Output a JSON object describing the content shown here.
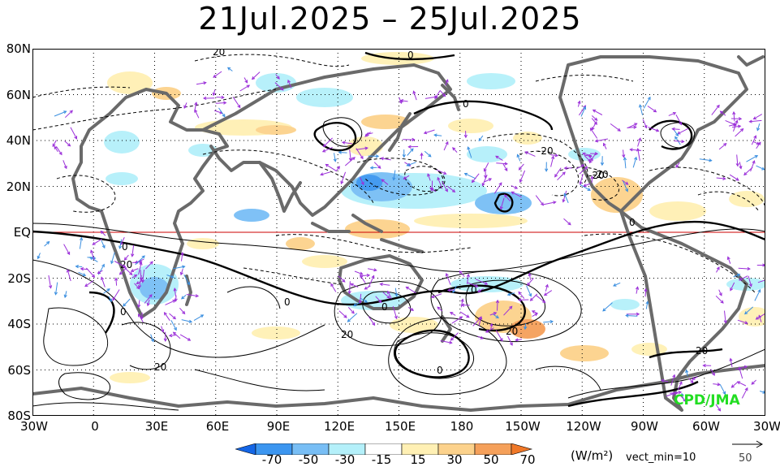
{
  "title": "21Jul.2025 – 25Jul.2025",
  "y_axis_labels": [
    "80N",
    "60N",
    "40N",
    "20N",
    "EQ",
    "20S",
    "40S",
    "60S",
    "80S"
  ],
  "x_axis_labels": [
    "30W",
    "0",
    "30E",
    "60E",
    "90E",
    "120E",
    "150E",
    "180",
    "150W",
    "120W",
    "90W",
    "60W",
    "30W"
  ],
  "contour_labels": [
    "20",
    "0",
    "0",
    "0",
    "-20",
    "-20",
    "0",
    "0",
    "20",
    "0",
    "20",
    "0",
    "20",
    "20",
    "0",
    "20",
    "0",
    "-20"
  ],
  "credit": "CPD/JMA",
  "colorbar": {
    "ticks": [
      "-70",
      "-50",
      "-30",
      "-15",
      "15",
      "30",
      "50",
      "70"
    ],
    "colors": [
      "#1466e6",
      "#3c96f0",
      "#78bef5",
      "#b4f0fa",
      "#ffffff",
      "#fff0b4",
      "#fcd28c",
      "#f5a05a",
      "#f07828"
    ]
  },
  "unit": "(W/m²)",
  "vector_note": "vect_min=10",
  "reference_vector": "50",
  "colors": {
    "land": "#6a6a6a",
    "negative_anomaly": "#3c96f0",
    "positive_anomaly": "#fcd28c",
    "vector": "#9b30d9",
    "vector_alt": "#3b8fe0",
    "equator": "#cc0000",
    "credit": "#22dd22"
  }
}
